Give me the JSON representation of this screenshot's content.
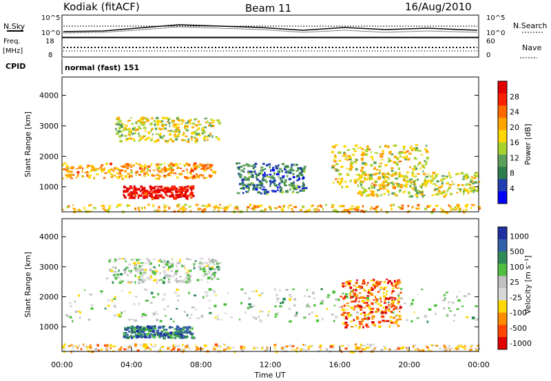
{
  "header": {
    "station": "Kodiak (fitACF)",
    "beam": "Beam 11",
    "date": "16/Aug/2010"
  },
  "summary_panels": {
    "nsky_label": "N.Sky",
    "nsearch_label": "N.Search",
    "noise_ticks": [
      "10^5",
      "10^0"
    ],
    "freq_label_1": "Freq.",
    "freq_label_2": "[MHz]",
    "freq_ticks": [
      "18",
      "8"
    ],
    "nave_label": "Nave",
    "nave_ticks": [
      "60",
      "0"
    ],
    "cpid_label": "CPID",
    "cpid_value": "normal (fast) 151"
  },
  "colors": {
    "power_scale": [
      "#0000ff",
      "#1f3fb0",
      "#2e7d4f",
      "#5aa05a",
      "#a8d32e",
      "#ffd700",
      "#ffa500",
      "#ff6a00",
      "#ff2000",
      "#e00000"
    ],
    "velocity_scale": [
      "#1f2fa0",
      "#3060a8",
      "#2e8b57",
      "#4fbf3f",
      "#c0c0c0",
      "#d8d8d8",
      "#ffd700",
      "#ff8c00",
      "#ff4500",
      "#e00000"
    ]
  },
  "chart_data": [
    {
      "type": "heatmap",
      "name": "power",
      "xlabel": "",
      "ylabel": "Slant Range [km]",
      "x_tick_labels": [],
      "y_ticks": [
        1000,
        2000,
        3000,
        4000
      ],
      "xlim": [
        0,
        24
      ],
      "ylim": [
        180,
        4600
      ],
      "colorbar_label": "Power [dB]",
      "colorbar_ticks": [
        "4",
        "8",
        "12",
        "16",
        "20",
        "24",
        "28"
      ],
      "bands": [
        {
          "t": [
            0.0,
            8.8
          ],
          "r": [
            1300,
            1800
          ],
          "level": 0.65
        },
        {
          "t": [
            3.5,
            7.5
          ],
          "r": [
            650,
            1050
          ],
          "level": 0.95
        },
        {
          "t": [
            0.0,
            24.0
          ],
          "r": [
            200,
            450
          ],
          "level": 0.6
        },
        {
          "t": [
            3.0,
            9.0
          ],
          "r": [
            2500,
            3300
          ],
          "level": 0.5
        },
        {
          "t": [
            10.0,
            14.0
          ],
          "r": [
            800,
            1800
          ],
          "level": 0.25
        },
        {
          "t": [
            15.5,
            21.0
          ],
          "r": [
            1000,
            2400
          ],
          "level": 0.55
        },
        {
          "t": [
            17.0,
            24.0
          ],
          "r": [
            700,
            1500
          ],
          "level": 0.5
        }
      ]
    },
    {
      "type": "heatmap",
      "name": "velocity",
      "xlabel": "Time UT",
      "ylabel": "Slant Range [km]",
      "x_tick_labels": [
        "00:00",
        "04:00",
        "08:00",
        "12:00",
        "16:00",
        "20:00",
        "00:00"
      ],
      "y_ticks": [
        1000,
        2000,
        3000,
        4000
      ],
      "xlim": [
        0,
        24
      ],
      "ylim": [
        180,
        4600
      ],
      "colorbar_label": "Velocity [m s⁻¹]",
      "colorbar_ticks": [
        "1000",
        "500",
        "100",
        "25",
        "-25",
        "-100",
        "-500",
        "-1000"
      ],
      "bands": [
        {
          "t": [
            0.0,
            24.0
          ],
          "r": [
            1200,
            2300
          ],
          "level": 0.45
        },
        {
          "t": [
            3.5,
            7.5
          ],
          "r": [
            650,
            1050
          ],
          "level": 0.2
        },
        {
          "t": [
            0.0,
            24.0
          ],
          "r": [
            200,
            450
          ],
          "level": 0.65
        },
        {
          "t": [
            16.0,
            19.5
          ],
          "r": [
            1000,
            2600
          ],
          "level": 0.8
        },
        {
          "t": [
            2.5,
            9.0
          ],
          "r": [
            2500,
            3300
          ],
          "level": 0.45
        }
      ]
    }
  ]
}
